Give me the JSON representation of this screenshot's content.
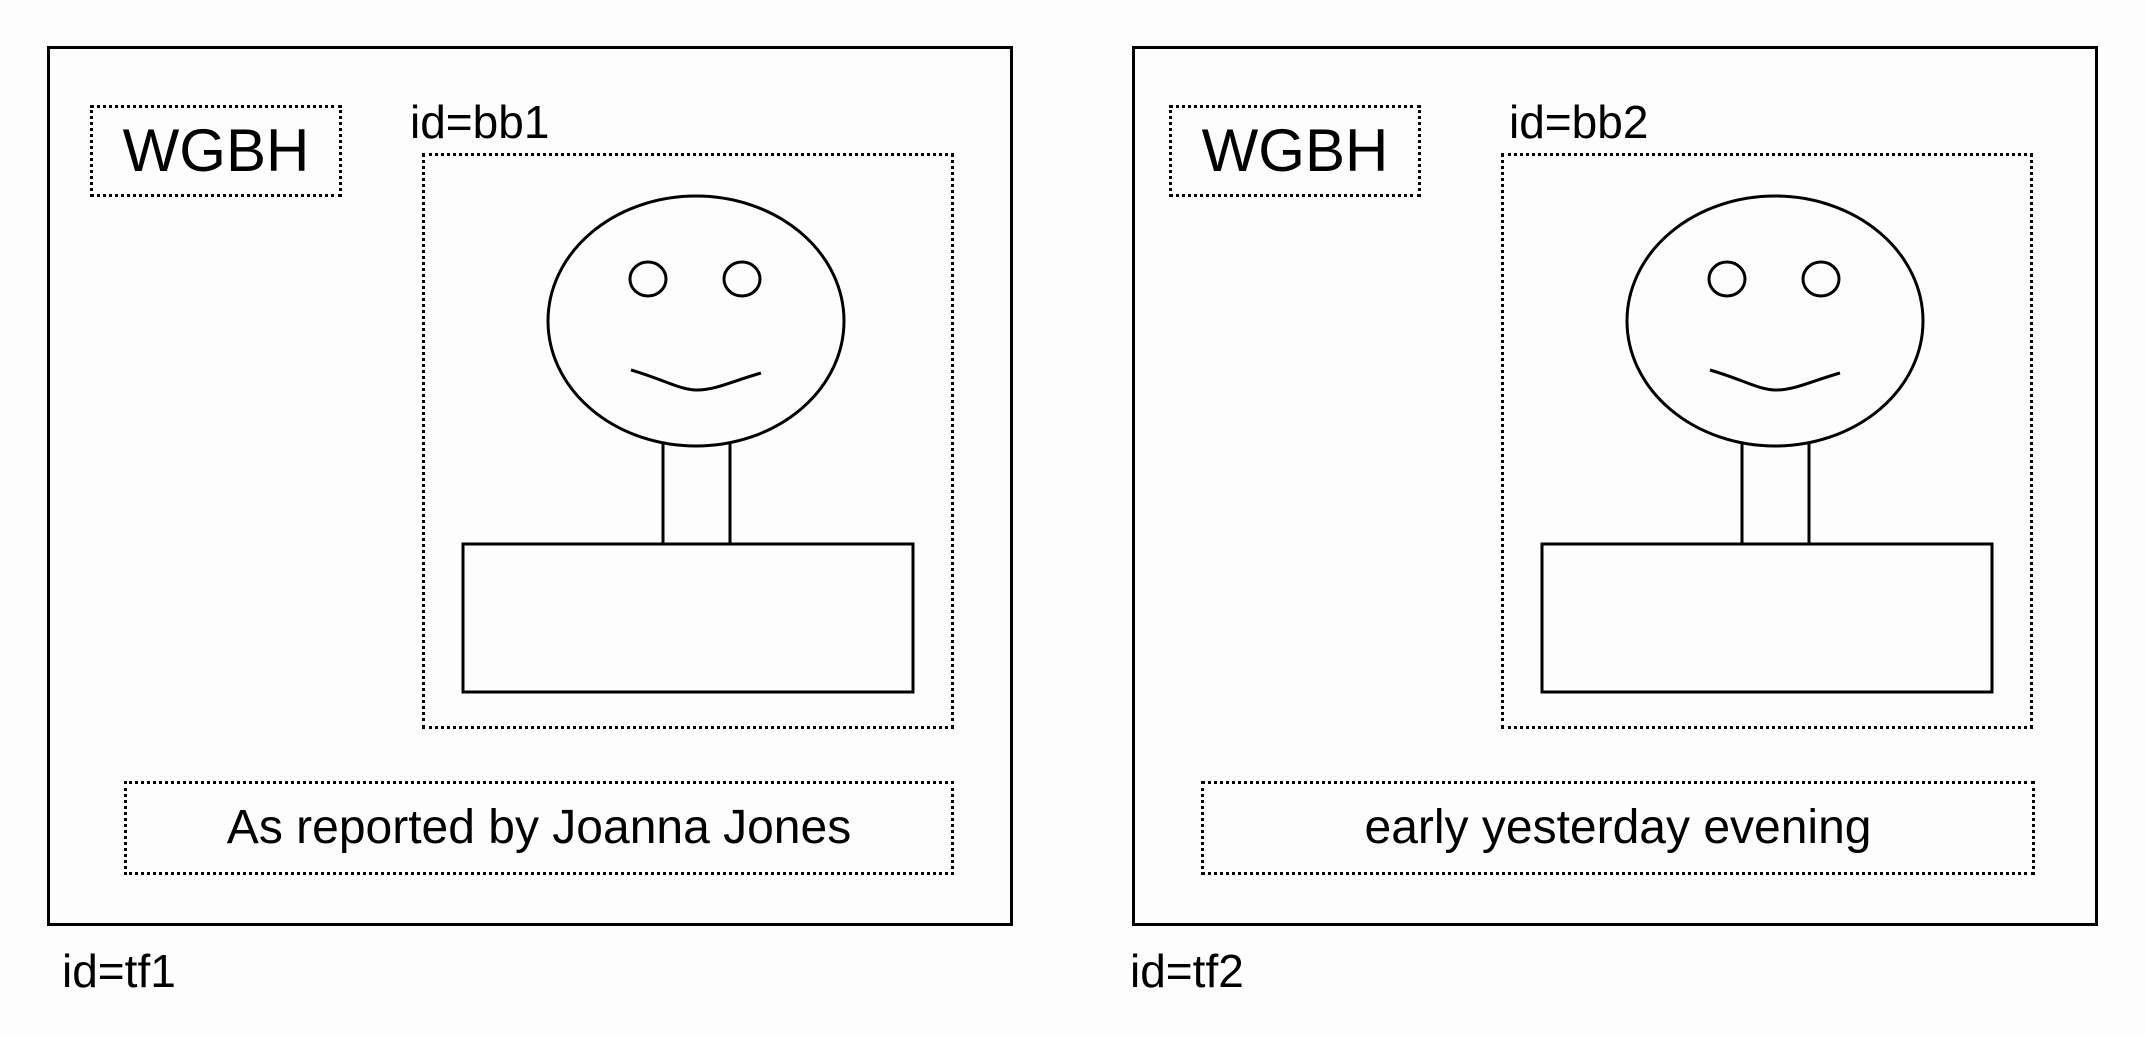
{
  "frames": [
    {
      "id_label": "id=tf1",
      "logo": "WGBH",
      "image_box_label": "id=bb1",
      "caption": "As reported by Joanna Jones",
      "figure_icon": "stick-figure-smiley-icon"
    },
    {
      "id_label": "id=tf2",
      "logo": "WGBH",
      "image_box_label": "id=bb2",
      "caption": "early yesterday evening",
      "figure_icon": "stick-figure-smiley-icon"
    }
  ],
  "colors": {
    "stroke": "#000000",
    "background": "#fdfdfd"
  }
}
